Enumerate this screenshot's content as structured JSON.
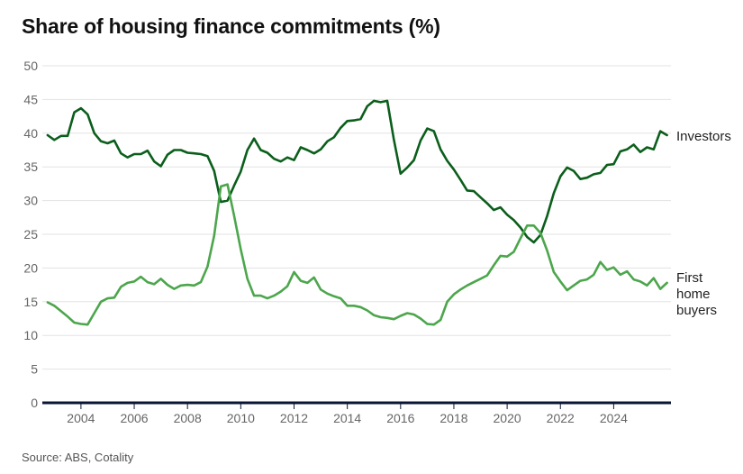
{
  "title": "Share of housing finance commitments (%)",
  "source": "Source: ABS, Cotality",
  "chart_data": {
    "type": "line",
    "title": "Share of housing finance commitments (%)",
    "xlabel": "",
    "ylabel": "",
    "ylim": [
      0,
      50
    ],
    "xlim": [
      2002.55,
      2026.15
    ],
    "yticks": [
      0,
      5,
      10,
      15,
      20,
      25,
      30,
      35,
      40,
      45,
      50
    ],
    "xticks": [
      2004,
      2006,
      2008,
      2010,
      2012,
      2014,
      2016,
      2018,
      2020,
      2022,
      2024
    ],
    "grid": "horizontal",
    "legend": "direct labels at right end of lines",
    "series": [
      {
        "name": "Investors",
        "label_lines": [
          "Investors"
        ],
        "color": "#0b5e1b",
        "x": [
          2002.75,
          2003.0,
          2003.25,
          2003.5,
          2003.75,
          2004.0,
          2004.25,
          2004.5,
          2004.75,
          2005.0,
          2005.25,
          2005.5,
          2005.75,
          2006.0,
          2006.25,
          2006.5,
          2006.75,
          2007.0,
          2007.25,
          2007.5,
          2007.75,
          2008.0,
          2008.25,
          2008.5,
          2008.75,
          2009.0,
          2009.25,
          2009.5,
          2009.75,
          2010.0,
          2010.25,
          2010.5,
          2010.75,
          2011.0,
          2011.25,
          2011.5,
          2011.75,
          2012.0,
          2012.25,
          2012.5,
          2012.75,
          2013.0,
          2013.25,
          2013.5,
          2013.75,
          2014.0,
          2014.25,
          2014.5,
          2014.75,
          2015.0,
          2015.25,
          2015.5,
          2015.75,
          2016.0,
          2016.25,
          2016.5,
          2016.75,
          2017.0,
          2017.25,
          2017.5,
          2017.75,
          2018.0,
          2018.25,
          2018.5,
          2018.75,
          2019.0,
          2019.25,
          2019.5,
          2019.75,
          2020.0,
          2020.25,
          2020.5,
          2020.75,
          2021.0,
          2021.25,
          2021.5,
          2021.75,
          2022.0,
          2022.25,
          2022.5,
          2022.75,
          2023.0,
          2023.25,
          2023.5,
          2023.75,
          2024.0,
          2024.25,
          2024.5,
          2024.75,
          2025.0,
          2025.25,
          2025.5,
          2025.75,
          2026.0
        ],
        "values": [
          39.7,
          39.0,
          39.6,
          39.6,
          43.1,
          43.7,
          42.8,
          40.0,
          38.8,
          38.5,
          38.9,
          37.0,
          36.4,
          36.9,
          36.9,
          37.4,
          35.8,
          35.1,
          36.8,
          37.5,
          37.5,
          37.1,
          37.0,
          36.9,
          36.6,
          34.4,
          29.8,
          30.0,
          32.2,
          34.3,
          37.5,
          39.2,
          37.5,
          37.1,
          36.2,
          35.8,
          36.4,
          36.0,
          37.9,
          37.5,
          37.0,
          37.6,
          38.8,
          39.4,
          40.8,
          41.8,
          41.9,
          42.1,
          44.0,
          44.8,
          44.6,
          44.8,
          39.0,
          34.0,
          34.9,
          36.0,
          38.9,
          40.7,
          40.3,
          37.6,
          35.9,
          34.6,
          33.1,
          31.5,
          31.4,
          30.5,
          29.6,
          28.6,
          29.0,
          27.9,
          27.1,
          26.0,
          24.6,
          23.8,
          24.9,
          27.7,
          31.1,
          33.6,
          34.9,
          34.4,
          33.2,
          33.4,
          33.9,
          34.1,
          35.3,
          35.4,
          37.3,
          37.6,
          38.3,
          37.2,
          37.9,
          37.6,
          40.3,
          39.7
        ]
      },
      {
        "name": "First home buyers",
        "label_lines": [
          "First",
          "home",
          "buyers"
        ],
        "color": "#4ca64c",
        "x": [
          2002.75,
          2003.0,
          2003.25,
          2003.5,
          2003.75,
          2004.0,
          2004.25,
          2004.5,
          2004.75,
          2005.0,
          2005.25,
          2005.5,
          2005.75,
          2006.0,
          2006.25,
          2006.5,
          2006.75,
          2007.0,
          2007.25,
          2007.5,
          2007.75,
          2008.0,
          2008.25,
          2008.5,
          2008.75,
          2009.0,
          2009.25,
          2009.5,
          2009.75,
          2010.0,
          2010.25,
          2010.5,
          2010.75,
          2011.0,
          2011.25,
          2011.5,
          2011.75,
          2012.0,
          2012.25,
          2012.5,
          2012.75,
          2013.0,
          2013.25,
          2013.5,
          2013.75,
          2014.0,
          2014.25,
          2014.5,
          2014.75,
          2015.0,
          2015.25,
          2015.5,
          2015.75,
          2016.0,
          2016.25,
          2016.5,
          2016.75,
          2017.0,
          2017.25,
          2017.5,
          2017.75,
          2018.0,
          2018.25,
          2018.5,
          2018.75,
          2019.0,
          2019.25,
          2019.5,
          2019.75,
          2020.0,
          2020.25,
          2020.5,
          2020.75,
          2021.0,
          2021.25,
          2021.5,
          2021.75,
          2022.0,
          2022.25,
          2022.5,
          2022.75,
          2023.0,
          2023.25,
          2023.5,
          2023.75,
          2024.0,
          2024.25,
          2024.5,
          2024.75,
          2025.0,
          2025.25,
          2025.5,
          2025.75,
          2026.0
        ],
        "values": [
          14.9,
          14.4,
          13.6,
          12.8,
          11.9,
          11.7,
          11.6,
          13.3,
          15.0,
          15.5,
          15.6,
          17.2,
          17.8,
          18.0,
          18.7,
          17.9,
          17.6,
          18.4,
          17.5,
          16.9,
          17.4,
          17.5,
          17.4,
          17.9,
          20.2,
          24.8,
          32.1,
          32.4,
          27.8,
          22.8,
          18.4,
          15.9,
          15.9,
          15.5,
          15.9,
          16.5,
          17.3,
          19.4,
          18.1,
          17.8,
          18.6,
          16.8,
          16.2,
          15.8,
          15.5,
          14.4,
          14.4,
          14.2,
          13.7,
          13.0,
          12.7,
          12.6,
          12.4,
          12.9,
          13.3,
          13.1,
          12.5,
          11.7,
          11.6,
          12.3,
          15.0,
          16.1,
          16.8,
          17.4,
          17.9,
          18.4,
          18.9,
          20.4,
          21.8,
          21.7,
          22.4,
          24.4,
          26.3,
          26.3,
          25.2,
          22.6,
          19.4,
          18.0,
          16.7,
          17.4,
          18.1,
          18.3,
          19.0,
          20.9,
          19.7,
          20.1,
          19.0,
          19.5,
          18.3,
          18.0,
          17.4,
          18.5,
          16.9,
          17.8
        ]
      }
    ]
  }
}
